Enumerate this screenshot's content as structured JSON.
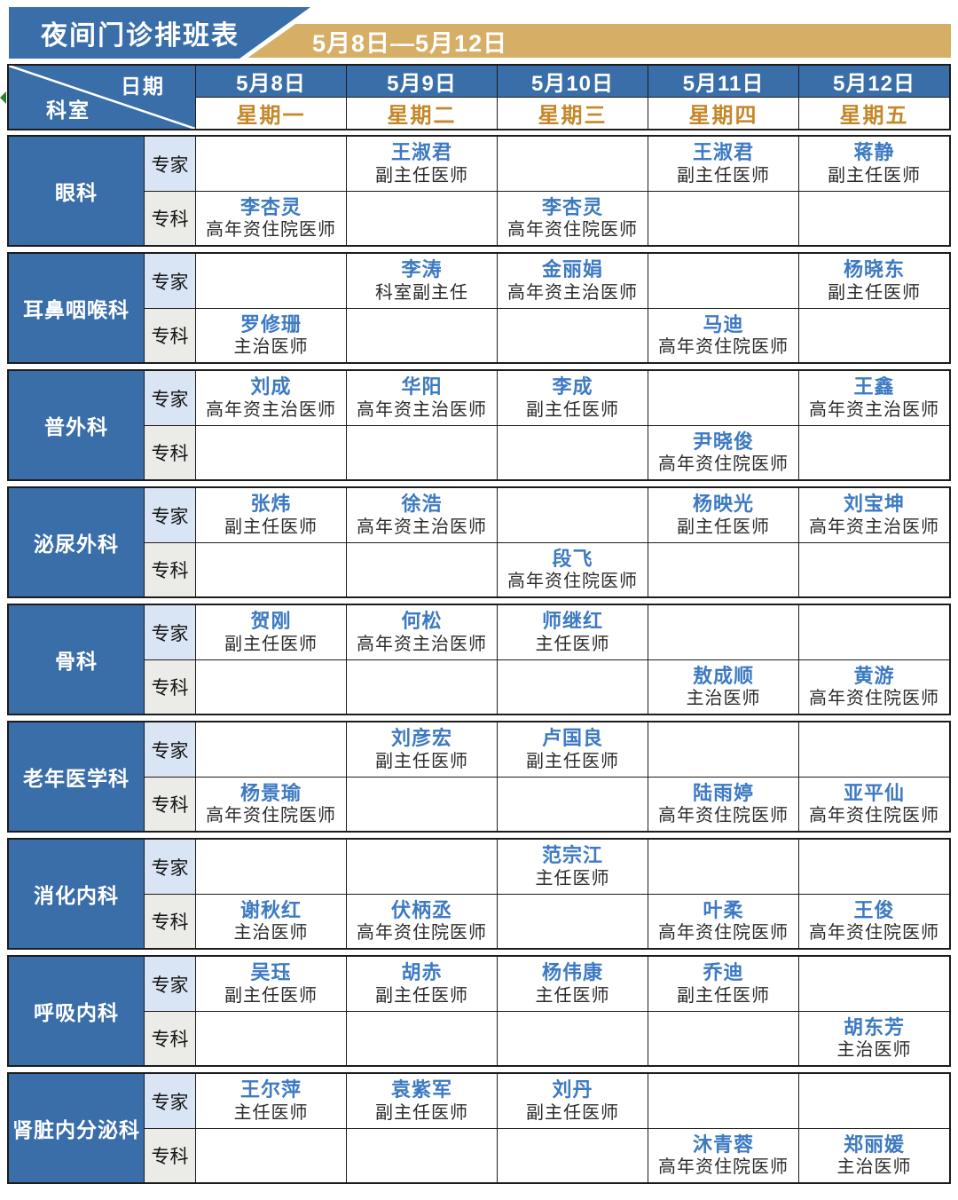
{
  "header": {
    "title": "夜间门诊排班表",
    "date_range": "5月8日—5月12日"
  },
  "colors": {
    "primary_blue": "#3a6ea8",
    "banner_gold": "#d6ae66",
    "weekday_orange": "#c4882a",
    "doctor_name_blue": "#3d7ac2",
    "expert_row_bg": "#d9e4f4",
    "specialist_row_bg": "#ebebe8"
  },
  "table": {
    "corner": {
      "date_label": "日期",
      "dept_label": "科室"
    },
    "days": [
      {
        "date": "5月8日",
        "weekday": "星期一"
      },
      {
        "date": "5月9日",
        "weekday": "星期二"
      },
      {
        "date": "5月10日",
        "weekday": "星期三"
      },
      {
        "date": "5月11日",
        "weekday": "星期四"
      },
      {
        "date": "5月12日",
        "weekday": "星期五"
      }
    ],
    "row_types": [
      "专家",
      "专科"
    ],
    "departments": [
      {
        "name": "眼科",
        "rows": [
          [
            null,
            {
              "doctor": "王淑君",
              "title": "副主任医师"
            },
            null,
            {
              "doctor": "王淑君",
              "title": "副主任医师"
            },
            {
              "doctor": "蒋静",
              "title": "副主任医师"
            }
          ],
          [
            {
              "doctor": "李杏灵",
              "title": "高年资住院医师"
            },
            null,
            {
              "doctor": "李杏灵",
              "title": "高年资住院医师"
            },
            null,
            null
          ]
        ]
      },
      {
        "name": "耳鼻咽喉科",
        "rows": [
          [
            null,
            {
              "doctor": "李涛",
              "title": "科室副主任"
            },
            {
              "doctor": "金丽娟",
              "title": "高年资主治医师"
            },
            null,
            {
              "doctor": "杨晓东",
              "title": "副主任医师"
            }
          ],
          [
            {
              "doctor": "罗修珊",
              "title": "主治医师"
            },
            null,
            null,
            {
              "doctor": "马迪",
              "title": "高年资住院医师"
            },
            null
          ]
        ]
      },
      {
        "name": "普外科",
        "rows": [
          [
            {
              "doctor": "刘成",
              "title": "高年资主治医师"
            },
            {
              "doctor": "华阳",
              "title": "高年资主治医师"
            },
            {
              "doctor": "李成",
              "title": "副主任医师"
            },
            null,
            {
              "doctor": "王鑫",
              "title": "高年资主治医师"
            }
          ],
          [
            null,
            null,
            null,
            {
              "doctor": "尹晓俊",
              "title": "高年资住院医师"
            },
            null
          ]
        ]
      },
      {
        "name": "泌尿外科",
        "rows": [
          [
            {
              "doctor": "张炜",
              "title": "副主任医师"
            },
            {
              "doctor": "徐浩",
              "title": "高年资主治医师"
            },
            null,
            {
              "doctor": "杨映光",
              "title": "副主任医师"
            },
            {
              "doctor": "刘宝坤",
              "title": "高年资主治医师"
            }
          ],
          [
            null,
            null,
            {
              "doctor": "段飞",
              "title": "高年资住院医师"
            },
            null,
            null
          ]
        ]
      },
      {
        "name": "骨科",
        "rows": [
          [
            {
              "doctor": "贺刚",
              "title": "副主任医师"
            },
            {
              "doctor": "何松",
              "title": "高年资主治医师"
            },
            {
              "doctor": "师继红",
              "title": "主任医师"
            },
            null,
            null
          ],
          [
            null,
            null,
            null,
            {
              "doctor": "敖成顺",
              "title": "主治医师"
            },
            {
              "doctor": "黄游",
              "title": "高年资住院医师"
            }
          ]
        ]
      },
      {
        "name": "老年医学科",
        "rows": [
          [
            null,
            {
              "doctor": "刘彦宏",
              "title": "副主任医师"
            },
            {
              "doctor": "卢国良",
              "title": "副主任医师"
            },
            null,
            null
          ],
          [
            {
              "doctor": "杨景瑜",
              "title": "高年资住院医师"
            },
            null,
            null,
            {
              "doctor": "陆雨婷",
              "title": "高年资住院医师"
            },
            {
              "doctor": "亚平仙",
              "title": "高年资住院医师"
            }
          ]
        ]
      },
      {
        "name": "消化内科",
        "rows": [
          [
            null,
            null,
            {
              "doctor": "范宗江",
              "title": "主任医师"
            },
            null,
            null
          ],
          [
            {
              "doctor": "谢秋红",
              "title": "主治医师"
            },
            {
              "doctor": "伏柄丞",
              "title": "高年资住院医师"
            },
            null,
            {
              "doctor": "叶柔",
              "title": "高年资住院医师"
            },
            {
              "doctor": "王俊",
              "title": "高年资住院医师"
            }
          ]
        ]
      },
      {
        "name": "呼吸内科",
        "rows": [
          [
            {
              "doctor": "吴珏",
              "title": "副主任医师"
            },
            {
              "doctor": "胡赤",
              "title": "副主任医师"
            },
            {
              "doctor": "杨伟康",
              "title": "主任医师"
            },
            {
              "doctor": "乔迪",
              "title": "副主任医师"
            },
            null
          ],
          [
            null,
            null,
            null,
            null,
            {
              "doctor": "胡东芳",
              "title": "主治医师"
            }
          ]
        ]
      },
      {
        "name": "肾脏内分泌科",
        "rows": [
          [
            {
              "doctor": "王尔萍",
              "title": "主任医师"
            },
            {
              "doctor": "袁紫军",
              "title": "副主任医师"
            },
            {
              "doctor": "刘丹",
              "title": "副主任医师"
            },
            null,
            null
          ],
          [
            null,
            null,
            null,
            {
              "doctor": "沐青蓉",
              "title": "高年资住院医师"
            },
            {
              "doctor": "郑丽媛",
              "title": "主治医师"
            }
          ]
        ]
      }
    ]
  }
}
